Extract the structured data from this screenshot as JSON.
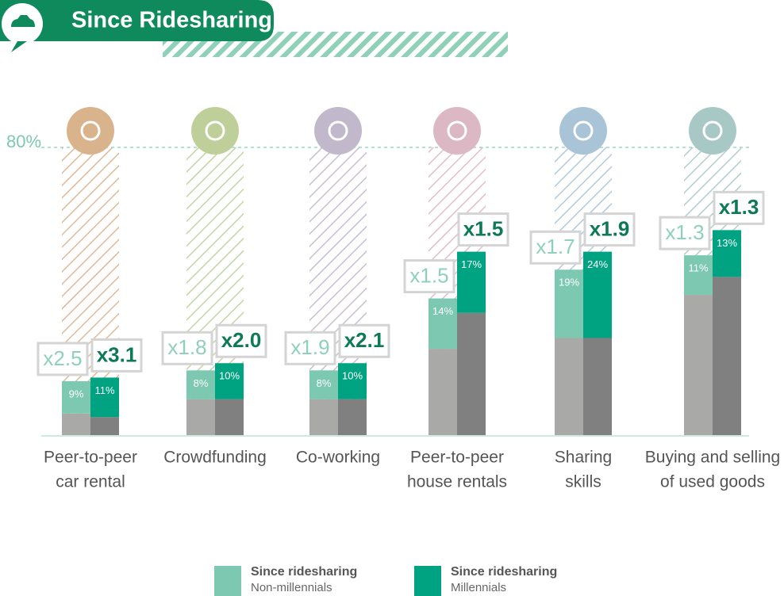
{
  "chart_data": {
    "type": "bar",
    "stacked": true,
    "title": "Since Ridesharing",
    "categories": [
      [
        "Peer-to-peer",
        "car rental"
      ],
      [
        "Crowdfunding"
      ],
      [
        "Co-working"
      ],
      [
        "Peer-to-peer",
        "house rentals"
      ],
      [
        "Sharing",
        "skills"
      ],
      [
        "Buying and selling",
        "of used goods"
      ]
    ],
    "category_colors": [
      "#d9b38c",
      "#bfcf9a",
      "#c2b8cc",
      "#dcb8c4",
      "#a9c4d6",
      "#a8c8c6"
    ],
    "series": [
      {
        "color": "#a9a9a7",
        "values": [
          6,
          10,
          10,
          24,
          27,
          39
        ]
      },
      {
        "name": "Since ridesharing",
        "group": "Non-millennials",
        "color": "#7cc8b0",
        "values": [
          9,
          8,
          8,
          14,
          19,
          11
        ],
        "value_labels": [
          "9%",
          "8%",
          "8%",
          "14%",
          "19%",
          "11%"
        ],
        "multipliers": [
          "x2.5",
          "x1.8",
          "x1.9",
          "x1.5",
          "x1.7",
          "x1.3"
        ]
      },
      {
        "color": "#808080",
        "values": [
          5,
          10,
          10,
          34,
          27,
          44
        ]
      },
      {
        "name": "Since ridesharing",
        "group": "Millennials",
        "color": "#00a381",
        "values": [
          11,
          10,
          10,
          17,
          24,
          13
        ],
        "value_labels": [
          "11%",
          "10%",
          "10%",
          "17%",
          "24%",
          "13%"
        ],
        "multipliers": [
          "x3.1",
          "x2.0",
          "x2.1",
          "x1.5",
          "x1.9",
          "x1.3"
        ]
      }
    ],
    "ylim": [
      0,
      80
    ],
    "yticks": [
      {
        "value": 80,
        "label": "80%"
      }
    ]
  }
}
